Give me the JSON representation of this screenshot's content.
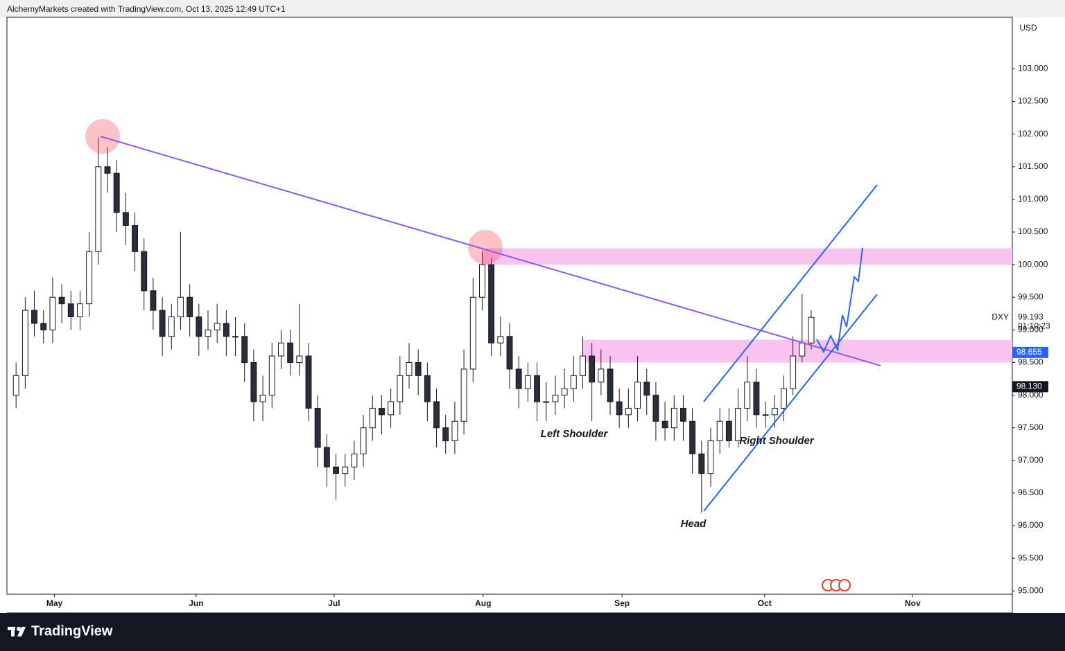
{
  "header": {
    "text": "AlchemyMarkets created with TradingView.com, Oct 13, 2025 12:49 UTC+1"
  },
  "chart_data": {
    "type": "candlestick",
    "currency": "USD",
    "symbol": "DXY",
    "open": [
      98.0,
      98.3,
      99.3,
      99.1,
      99.0,
      99.5,
      99.4,
      99.2,
      99.4,
      100.2,
      101.5,
      101.4,
      100.8,
      100.6,
      100.2,
      99.6,
      99.3,
      98.9,
      99.2,
      99.5,
      99.2,
      98.9,
      99.0,
      99.1,
      98.9,
      98.9,
      98.5,
      97.9,
      98.0,
      98.6,
      98.8,
      98.5,
      98.6,
      97.8,
      97.2,
      96.9,
      96.8,
      96.9,
      97.1,
      97.5,
      97.8,
      97.7,
      97.9,
      98.3,
      98.5,
      98.3,
      97.9,
      97.5,
      97.3,
      97.6,
      98.4,
      99.5,
      100.0,
      98.8,
      98.9,
      98.4,
      98.1,
      98.3,
      97.9,
      97.9,
      98.0,
      98.1,
      98.3,
      98.6,
      98.2,
      98.4,
      97.9,
      97.7,
      97.8,
      98.2,
      98.0,
      97.6,
      97.5,
      97.8,
      97.6,
      97.1,
      96.8,
      97.3,
      97.6,
      97.3,
      97.8,
      98.2,
      97.7,
      97.7,
      97.8,
      98.1,
      98.6,
      98.8
    ],
    "high": [
      98.5,
      99.5,
      99.6,
      99.3,
      99.8,
      99.7,
      99.6,
      99.6,
      100.5,
      101.95,
      101.8,
      101.6,
      101.1,
      100.8,
      100.4,
      99.8,
      99.5,
      99.4,
      100.5,
      99.7,
      99.4,
      99.3,
      99.4,
      99.3,
      99.2,
      99.1,
      98.7,
      98.3,
      98.8,
      99.0,
      99.0,
      99.4,
      98.8,
      98.0,
      97.4,
      97.1,
      97.1,
      97.3,
      97.7,
      98.0,
      98.0,
      98.1,
      98.6,
      98.8,
      98.7,
      98.5,
      98.1,
      97.7,
      97.9,
      98.7,
      99.8,
      100.2,
      100.1,
      99.2,
      99.1,
      98.6,
      98.5,
      98.5,
      98.2,
      98.3,
      98.4,
      98.6,
      98.9,
      98.8,
      98.7,
      98.6,
      98.1,
      98.1,
      98.6,
      98.4,
      98.2,
      97.9,
      98.0,
      98.0,
      97.8,
      97.3,
      97.5,
      97.8,
      97.8,
      98.1,
      98.6,
      98.4,
      97.9,
      98.0,
      98.3,
      98.9,
      99.55,
      99.3
    ],
    "low": [
      97.8,
      98.1,
      98.9,
      98.8,
      98.8,
      99.1,
      99.0,
      99.0,
      99.2,
      100.0,
      101.1,
      100.5,
      100.3,
      99.9,
      99.3,
      99.0,
      98.6,
      98.7,
      99.0,
      98.9,
      98.6,
      98.7,
      98.8,
      98.6,
      98.6,
      98.2,
      97.6,
      97.6,
      97.8,
      98.4,
      98.3,
      98.3,
      97.6,
      96.9,
      96.6,
      96.4,
      96.6,
      96.7,
      96.9,
      97.3,
      97.4,
      97.5,
      97.7,
      98.1,
      98.0,
      97.6,
      97.2,
      97.1,
      97.1,
      97.4,
      98.2,
      99.3,
      98.6,
      98.6,
      98.1,
      97.8,
      97.9,
      97.6,
      97.6,
      97.7,
      97.8,
      97.9,
      98.1,
      97.6,
      98.0,
      97.7,
      97.5,
      97.5,
      97.6,
      97.7,
      97.3,
      97.3,
      97.3,
      97.3,
      96.8,
      96.2,
      96.6,
      97.1,
      97.2,
      97.2,
      97.6,
      97.5,
      97.5,
      97.5,
      97.6,
      98.0,
      98.5,
      98.7
    ],
    "close": [
      98.3,
      99.3,
      99.1,
      99.0,
      99.5,
      99.4,
      99.2,
      99.4,
      100.2,
      101.5,
      101.4,
      100.8,
      100.6,
      100.2,
      99.6,
      99.3,
      98.9,
      99.2,
      99.5,
      99.2,
      98.9,
      99.0,
      99.1,
      98.9,
      98.9,
      98.5,
      97.9,
      98.0,
      98.6,
      98.8,
      98.5,
      98.6,
      97.8,
      97.2,
      96.9,
      96.8,
      96.9,
      97.1,
      97.5,
      97.8,
      97.7,
      97.9,
      98.3,
      98.5,
      98.3,
      97.9,
      97.5,
      97.3,
      97.6,
      98.4,
      99.5,
      100.0,
      98.8,
      98.9,
      98.4,
      98.1,
      98.3,
      97.9,
      97.9,
      98.0,
      98.1,
      98.3,
      98.6,
      98.2,
      98.4,
      97.9,
      97.7,
      97.8,
      98.2,
      98.0,
      97.6,
      97.5,
      97.8,
      97.6,
      97.1,
      96.8,
      97.3,
      97.6,
      97.3,
      97.8,
      98.2,
      97.7,
      97.7,
      97.8,
      98.1,
      98.6,
      98.8,
      99.193
    ],
    "xlim": [
      -1,
      109
    ],
    "xticks": [
      {
        "value": 4.2,
        "label": "May"
      },
      {
        "value": 19.7,
        "label": "Jun"
      },
      {
        "value": 34.8,
        "label": "Jul"
      },
      {
        "value": 51.1,
        "label": "Aug"
      },
      {
        "value": 66.3,
        "label": "Sep"
      },
      {
        "value": 81.9,
        "label": "Oct"
      },
      {
        "value": 98.1,
        "label": "Nov"
      }
    ],
    "ylim": [
      94.95,
      103.79
    ],
    "yticks": [
      {
        "value": 95,
        "label": "95.000"
      },
      {
        "value": 95.5,
        "label": "95.500"
      },
      {
        "value": 96,
        "label": "96.000"
      },
      {
        "value": 96.5,
        "label": "96.500"
      },
      {
        "value": 97,
        "label": "97.000"
      },
      {
        "value": 97.5,
        "label": "97.500"
      },
      {
        "value": 98,
        "label": "98.000"
      },
      {
        "value": 98.5,
        "label": "98.500"
      },
      {
        "value": 99,
        "label": "99.000"
      },
      {
        "value": 99.5,
        "label": "99.500"
      },
      {
        "value": 100,
        "label": "100.000"
      },
      {
        "value": 100.5,
        "label": "100.500"
      },
      {
        "value": 101,
        "label": "101.000"
      },
      {
        "value": 101.5,
        "label": "101.500"
      },
      {
        "value": 102,
        "label": "102.000"
      },
      {
        "value": 102.5,
        "label": "102.500"
      },
      {
        "value": 103,
        "label": "103.000"
      }
    ],
    "zones": [
      [
        100.0,
        100.25
      ],
      [
        98.5,
        98.85
      ]
    ],
    "zone_color": "#f9c3ef",
    "last_price": 99.193,
    "countdown": "01:10:23",
    "price_tags": [
      {
        "value": 98.655,
        "color": "#2962ff"
      },
      {
        "value": 98.13,
        "label": "98.130",
        "color": "#131722"
      }
    ],
    "up_color": "#ffffff",
    "down_color": "#2a2e39",
    "annotations": [
      "Left Shoulder",
      "Right Shoulder",
      "Head"
    ]
  },
  "footer": {
    "brand": "TradingView"
  }
}
